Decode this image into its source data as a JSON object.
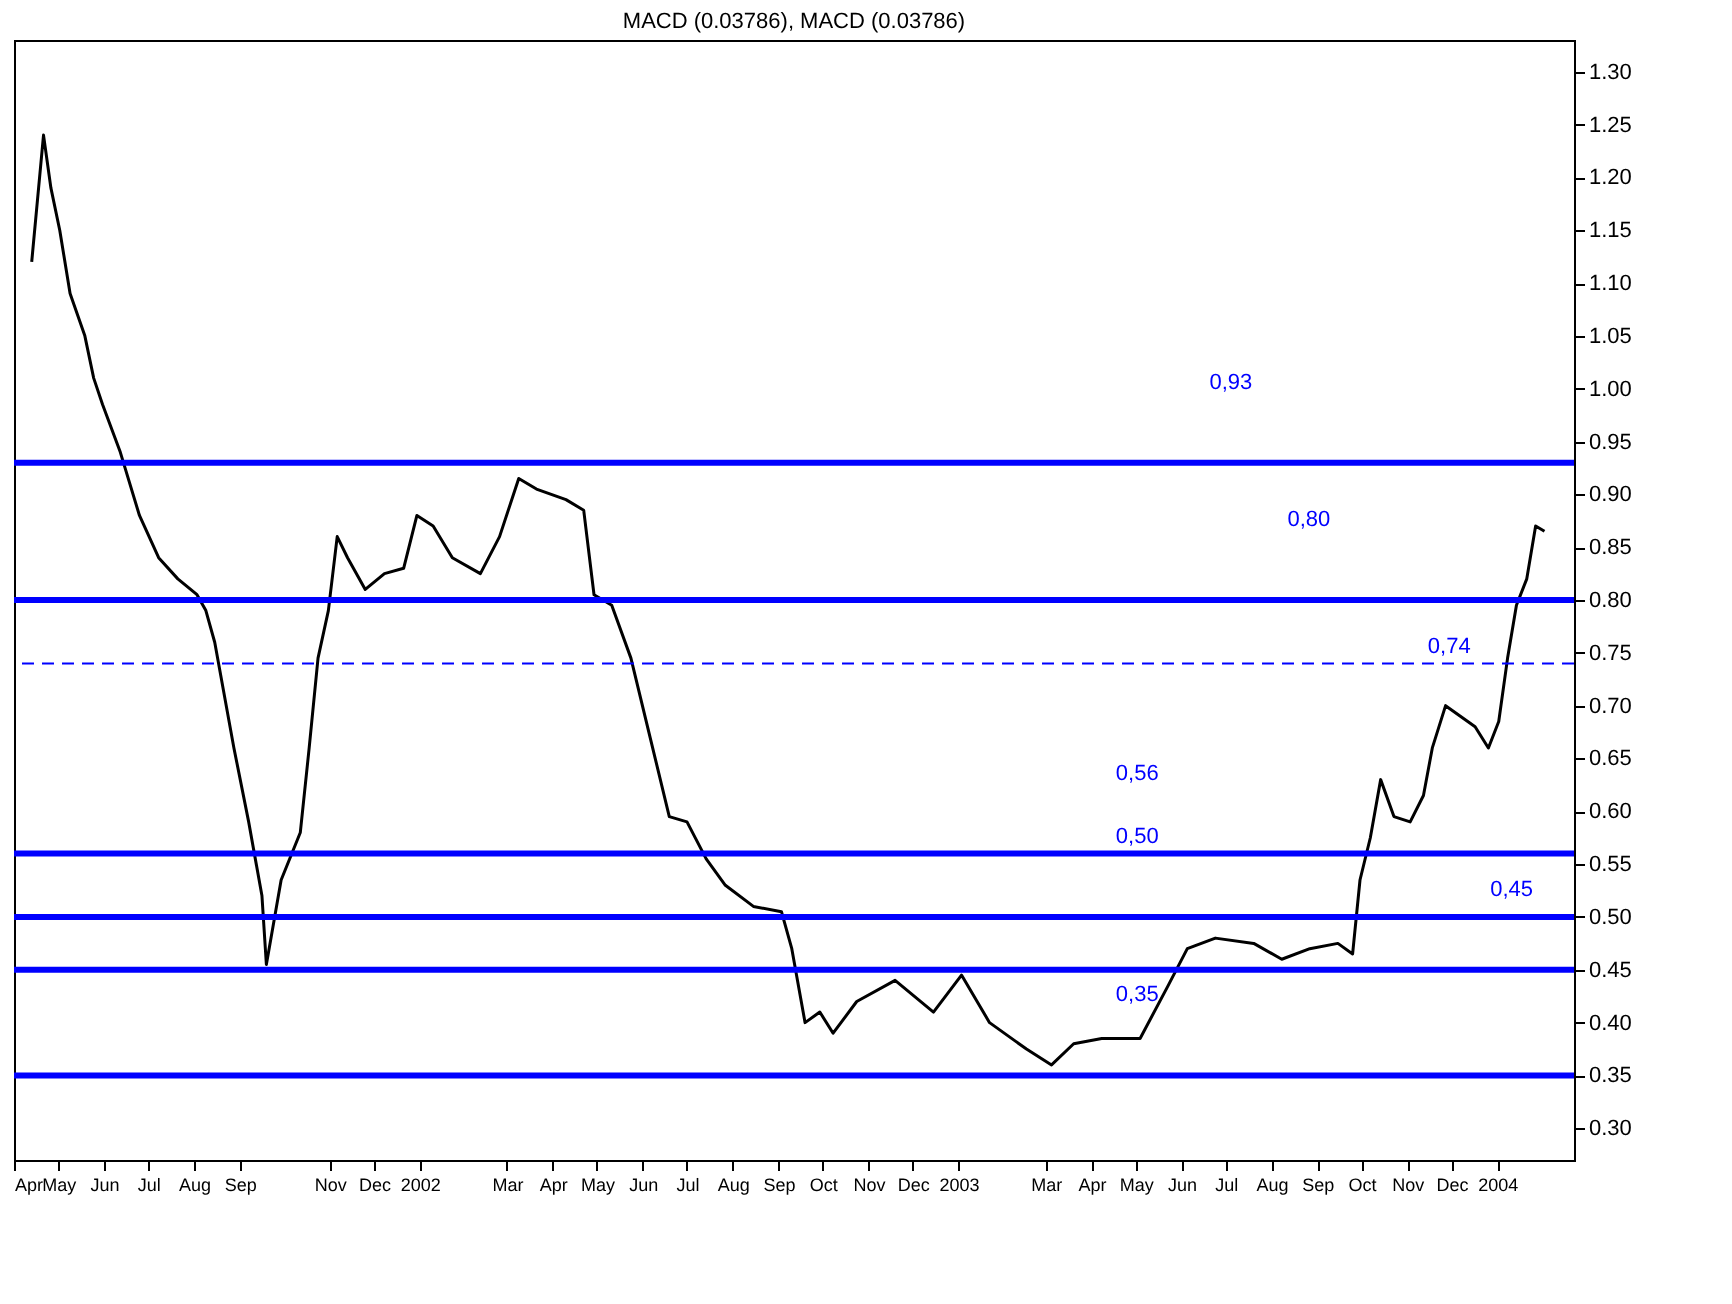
{
  "chart_data": {
    "type": "line",
    "title": "MACD (0.03786), MACD (0.03786)",
    "x": [
      "2001-04-13",
      "2001-04-21",
      "2001-04-26",
      "2001-05-02",
      "2001-05-09",
      "2001-05-19",
      "2001-05-25",
      "2001-05-31",
      "2001-06-12",
      "2001-06-25",
      "2001-07-08",
      "2001-07-21",
      "2001-08-03",
      "2001-08-09",
      "2001-08-15",
      "2001-08-28",
      "2001-09-07",
      "2001-09-16",
      "2001-09-19",
      "2001-09-29",
      "2001-10-12",
      "2001-10-18",
      "2001-10-24",
      "2001-10-31",
      "2001-11-06",
      "2001-11-13",
      "2001-11-25",
      "2001-12-08",
      "2001-12-21",
      "2001-12-30",
      "2002-01-10",
      "2002-01-23",
      "2002-02-11",
      "2002-02-24",
      "2002-03-09",
      "2002-03-21",
      "2002-04-10",
      "2002-04-22",
      "2002-04-29",
      "2002-05-11",
      "2002-05-24",
      "2002-06-06",
      "2002-06-19",
      "2002-07-01",
      "2002-07-14",
      "2002-07-27",
      "2002-08-15",
      "2002-09-03",
      "2002-09-10",
      "2002-09-19",
      "2002-09-29",
      "2002-10-08",
      "2002-10-24",
      "2002-11-19",
      "2002-12-15",
      "2003-01-03",
      "2003-01-22",
      "2003-02-16",
      "2003-03-05",
      "2003-03-20",
      "2003-04-08",
      "2003-05-04",
      "2003-05-23",
      "2003-06-05",
      "2003-06-24",
      "2003-07-20",
      "2003-08-08",
      "2003-08-27",
      "2003-09-15",
      "2003-09-25",
      "2003-09-30",
      "2003-10-07",
      "2003-10-14",
      "2003-10-23",
      "2003-11-03",
      "2003-11-12",
      "2003-11-18",
      "2003-11-27",
      "2003-12-07",
      "2003-12-17",
      "2003-12-26",
      "2004-01-02",
      "2004-01-08",
      "2004-01-14",
      "2004-01-21",
      "2004-01-27",
      "2004-02-02"
    ],
    "series": [
      {
        "color": "#000000",
        "values": [
          1.12,
          1.24,
          1.19,
          1.15,
          1.09,
          1.05,
          1.01,
          0.985,
          0.94,
          0.88,
          0.84,
          0.82,
          0.805,
          0.79,
          0.76,
          0.66,
          0.59,
          0.52,
          0.455,
          0.535,
          0.58,
          0.66,
          0.745,
          0.79,
          0.86,
          0.84,
          0.81,
          0.825,
          0.83,
          0.88,
          0.87,
          0.84,
          0.825,
          0.86,
          0.915,
          0.905,
          0.895,
          0.885,
          0.805,
          0.795,
          0.745,
          0.67,
          0.595,
          0.59,
          0.555,
          0.53,
          0.51,
          0.505,
          0.47,
          0.4,
          0.41,
          0.39,
          0.42,
          0.44,
          0.41,
          0.445,
          0.4,
          0.375,
          0.36,
          0.38,
          0.385,
          0.385,
          0.435,
          0.47,
          0.48,
          0.475,
          0.46,
          0.47,
          0.475,
          0.465,
          0.535,
          0.575,
          0.63,
          0.595,
          0.59,
          0.615,
          0.66,
          0.7,
          0.69,
          0.68,
          0.66,
          0.685,
          0.745,
          0.795,
          0.82,
          0.87,
          0.865
        ]
      }
    ],
    "xlim": [
      "2001-04-01",
      "2004-02-22"
    ],
    "xticks": [
      {
        "value": "2001-04-01",
        "label": "Apr"
      },
      {
        "value": "2001-05-01",
        "label": "May"
      },
      {
        "value": "2001-06-01",
        "label": "Jun"
      },
      {
        "value": "2001-07-01",
        "label": "Jul"
      },
      {
        "value": "2001-08-01",
        "label": "Aug"
      },
      {
        "value": "2001-09-01",
        "label": "Sep"
      },
      {
        "value": "2001-11-01",
        "label": "Nov"
      },
      {
        "value": "2001-12-01",
        "label": "Dec"
      },
      {
        "value": "2002-01-01",
        "label": "2002"
      },
      {
        "value": "2002-03-01",
        "label": "Mar"
      },
      {
        "value": "2002-04-01",
        "label": "Apr"
      },
      {
        "value": "2002-05-01",
        "label": "May"
      },
      {
        "value": "2002-06-01",
        "label": "Jun"
      },
      {
        "value": "2002-07-01",
        "label": "Jul"
      },
      {
        "value": "2002-08-01",
        "label": "Aug"
      },
      {
        "value": "2002-09-01",
        "label": "Sep"
      },
      {
        "value": "2002-10-01",
        "label": "Oct"
      },
      {
        "value": "2002-11-01",
        "label": "Nov"
      },
      {
        "value": "2002-12-01",
        "label": "Dec"
      },
      {
        "value": "2003-01-01",
        "label": "2003"
      },
      {
        "value": "2003-03-01",
        "label": "Mar"
      },
      {
        "value": "2003-04-01",
        "label": "Apr"
      },
      {
        "value": "2003-05-01",
        "label": "May"
      },
      {
        "value": "2003-06-01",
        "label": "Jun"
      },
      {
        "value": "2003-07-01",
        "label": "Jul"
      },
      {
        "value": "2003-08-01",
        "label": "Aug"
      },
      {
        "value": "2003-09-01",
        "label": "Sep"
      },
      {
        "value": "2003-10-01",
        "label": "Oct"
      },
      {
        "value": "2003-11-01",
        "label": "Nov"
      },
      {
        "value": "2003-12-01",
        "label": "Dec"
      },
      {
        "value": "2004-01-01",
        "label": "2004"
      }
    ],
    "ylim": [
      0.27,
      1.33
    ],
    "yticks": [
      {
        "value": 0.3,
        "label": "0.30"
      },
      {
        "value": 0.35,
        "label": "0.35"
      },
      {
        "value": 0.4,
        "label": "0.40"
      },
      {
        "value": 0.45,
        "label": "0.45"
      },
      {
        "value": 0.5,
        "label": "0.50"
      },
      {
        "value": 0.55,
        "label": "0.55"
      },
      {
        "value": 0.6,
        "label": "0.60"
      },
      {
        "value": 0.65,
        "label": "0.65"
      },
      {
        "value": 0.7,
        "label": "0.70"
      },
      {
        "value": 0.75,
        "label": "0.75"
      },
      {
        "value": 0.8,
        "label": "0.80"
      },
      {
        "value": 0.85,
        "label": "0.85"
      },
      {
        "value": 0.9,
        "label": "0.90"
      },
      {
        "value": 0.95,
        "label": "0.95"
      },
      {
        "value": 1.0,
        "label": "1.00"
      },
      {
        "value": 1.05,
        "label": "1.05"
      },
      {
        "value": 1.1,
        "label": "1.10"
      },
      {
        "value": 1.15,
        "label": "1.15"
      },
      {
        "value": 1.2,
        "label": "1.20"
      },
      {
        "value": 1.25,
        "label": "1.25"
      },
      {
        "value": 1.3,
        "label": "1.30"
      }
    ],
    "ref_lines": [
      {
        "axis": "y",
        "value": 0.93,
        "label": "0,93",
        "color": "#0000ff"
      },
      {
        "axis": "y",
        "value": 0.8,
        "label": "0,80",
        "color": "#0000ff"
      },
      {
        "axis": "y",
        "value": 0.56,
        "label": "0,56",
        "color": "#0000ff"
      },
      {
        "axis": "y",
        "value": 0.5,
        "label": "0,50",
        "color": "#0000ff"
      },
      {
        "axis": "y",
        "value": 0.45,
        "label": "0,45",
        "color": "#0000ff"
      },
      {
        "axis": "y",
        "value": 0.35,
        "label": "0,35",
        "color": "#0000ff"
      },
      {
        "axis": "y",
        "value": 0.74,
        "label": "0,74",
        "color": "#0000ff",
        "line_style": "dashed"
      }
    ],
    "grid": false,
    "marker": "none",
    "line_style": "solid"
  }
}
